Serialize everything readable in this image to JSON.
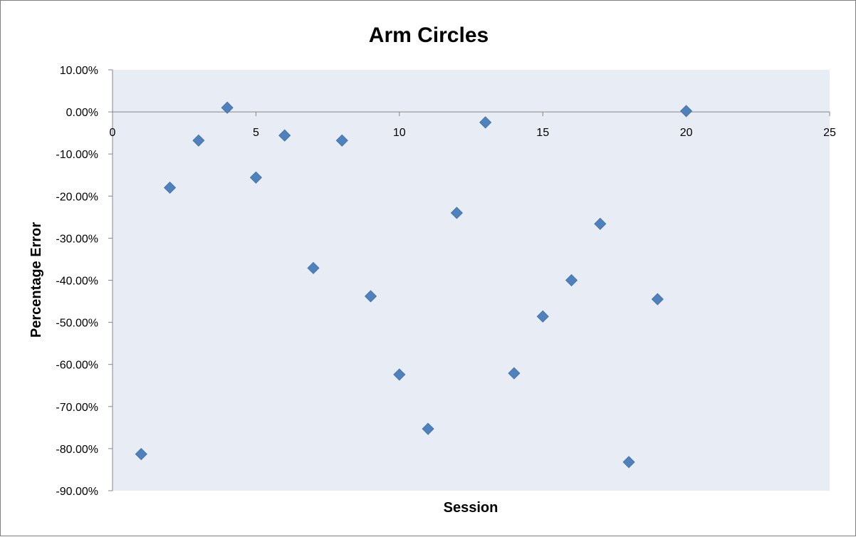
{
  "chart_data": {
    "type": "scatter",
    "title": "Arm Circles",
    "xlabel": "Session",
    "ylabel": "Percentage Error",
    "xlim": [
      0,
      25
    ],
    "ylim": [
      -90,
      10
    ],
    "x_ticks": [
      0,
      5,
      10,
      15,
      20,
      25
    ],
    "x_tick_labels": [
      "0",
      "5",
      "10",
      "15",
      "20",
      "25"
    ],
    "y_ticks": [
      10,
      0,
      -10,
      -20,
      -30,
      -40,
      -50,
      -60,
      -70,
      -80,
      -90
    ],
    "y_tick_labels": [
      "10.00%",
      "0.00%",
      "-10.00%",
      "-20.00%",
      "-30.00%",
      "-40.00%",
      "-50.00%",
      "-60.00%",
      "-70.00%",
      "-80.00%",
      "-90.00%"
    ],
    "grid": false,
    "legend": "none",
    "plot_background": "#e8edf5",
    "marker_color": "#4f81bd",
    "marker_shape": "diamond",
    "series": [
      {
        "x": [
          1,
          2,
          3,
          4,
          5,
          6,
          7,
          8,
          9,
          10,
          11,
          12,
          13,
          14,
          15,
          16,
          17,
          18,
          19,
          20
        ],
        "y": [
          -81.3,
          -18.0,
          -6.8,
          1.0,
          -15.6,
          -5.6,
          -37.1,
          -6.8,
          -43.8,
          -62.4,
          -75.3,
          -24.0,
          -2.5,
          -62.1,
          -48.6,
          -40.0,
          -26.6,
          -83.2,
          -44.5,
          0.2
        ]
      }
    ]
  }
}
